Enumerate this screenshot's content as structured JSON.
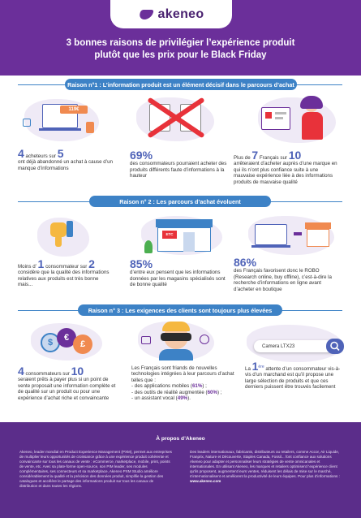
{
  "header": {
    "logo_text": "akeneo",
    "title_line1": "3 bonnes raisons de privilégier l’expérience produit",
    "title_line2": "plutôt que les prix pour le Black Friday"
  },
  "sections": [
    {
      "banner": "Raison n°1 : L’information produit est un élément décisif dans le parcours d’achat",
      "stats": [
        {
          "num1": "4",
          "mid": "acheteurs sur",
          "num2": "5",
          "text": "ont déjà abandonné un achat à cause d’un manque d’informations"
        },
        {
          "num1": "69%",
          "text": "des consommateurs pourraient acheter des produits différents faute d’informations à la hauteur"
        },
        {
          "pre": "Plus de",
          "num1": "7",
          "mid": "Français sur",
          "num2": "10",
          "text": "arrêteraient d’acheter auprès d’une marque en qui ils n’ont plus confiance suite à une mauvaise expérience liée à des informations produits de mauvaise qualité"
        }
      ]
    },
    {
      "banner": "Raison n° 2 : Les parcours d’achat évoluent",
      "stats": [
        {
          "pre": "Moins d’",
          "num1": "1",
          "mid": "consommateur sur",
          "num2": "2",
          "text": "considère que la qualité des informations relatives aux produits est très bonne mais..."
        },
        {
          "num1": "85%",
          "text": "d’entre eux pensent que les informations données par les magasins spécialisés sont de bonne qualité"
        },
        {
          "num1": "86%",
          "text": "des Français favorisent donc le ROBO (Research online, buy offline), c’est-à-dire la recherche d’informations en ligne avant d’acheter en boutique"
        }
      ]
    },
    {
      "banner": "Raison n° 3 : Les exigences des clients sont toujours plus élevées",
      "stats": [
        {
          "num1": "4",
          "mid": "consommateurs sur",
          "num2": "10",
          "text": "seraient prêts à payer plus si un point de vente proposait une information complète et de qualité sur un produit ou pour une expérience d’achat riche et convaincante"
        },
        {
          "text": "Les Français sont friands de nouvelles technologies intégrées à leur parcours d’achat telles que :",
          "bullets": [
            {
              "label": "- des applications mobiles (",
              "val": "61%",
              "end": ") ;"
            },
            {
              "label": "- des outils de réalité augmentée (",
              "val": "60%",
              "end": ") ;"
            },
            {
              "label": "- un assistant vocal (",
              "val": "49%",
              "end": ")."
            }
          ]
        },
        {
          "pre": "La",
          "num1": "1",
          "sup": "ère",
          "text": "attente d’un consommateur vis-à-vis d’un marchand est qu’il propose une large sélection de produits et que ces derniers puissent être trouvés facilement"
        }
      ]
    }
  ],
  "illustration": {
    "price_tag": "119€",
    "store_sign": "ETC",
    "search_text": "Camera LTX23"
  },
  "footer": {
    "title": "À propos d’Akeneo",
    "col1": "Akeneo, leader mondial en Product Experience Management (PXM), permet aux entreprises de multiplier leurs opportunités de croissance grâce à une expérience produit cohérente et convaincante sur tous les canaux de vente : eCommerce, marketplace, mobile, print, points de vente, etc. Avec sa plate-forme open-source, son PIM leader, ses modules complémentaires, ses connecteurs et sa marketplace, Akeneo PXM Studio améliore considérablement la qualité et la précision des données produit, simplifie la gestion des catalogues et accélère le partage des informations produit sur tous les canaux de distribution et dans toutes les régions.",
    "col2": "Des leaders internationaux, fabricants, distributeurs ou retailers, comme Accor, Air Liquide, Franprix, Nature et Découverte, Staples Canada, Fossil... font confiance aux solutions Akeneo pour adapter et personnaliser leurs stratégies de vente omnicanales et internationales. En utilisant Akeneo, les marques et retailers optimisent l’expérience client qu’ils proposent, augmentent leurs ventes, réduisent les délais de mise sur le marché, s’internationalisent et améliorent la productivité de leurs équipes. Pour plus d’informations :",
    "link": "www.akeneo.com"
  },
  "colors": {
    "purple": "#6b2f9a",
    "blue": "#3d82c6",
    "number": "#4f63b8",
    "footer": "#5b2d8a"
  }
}
